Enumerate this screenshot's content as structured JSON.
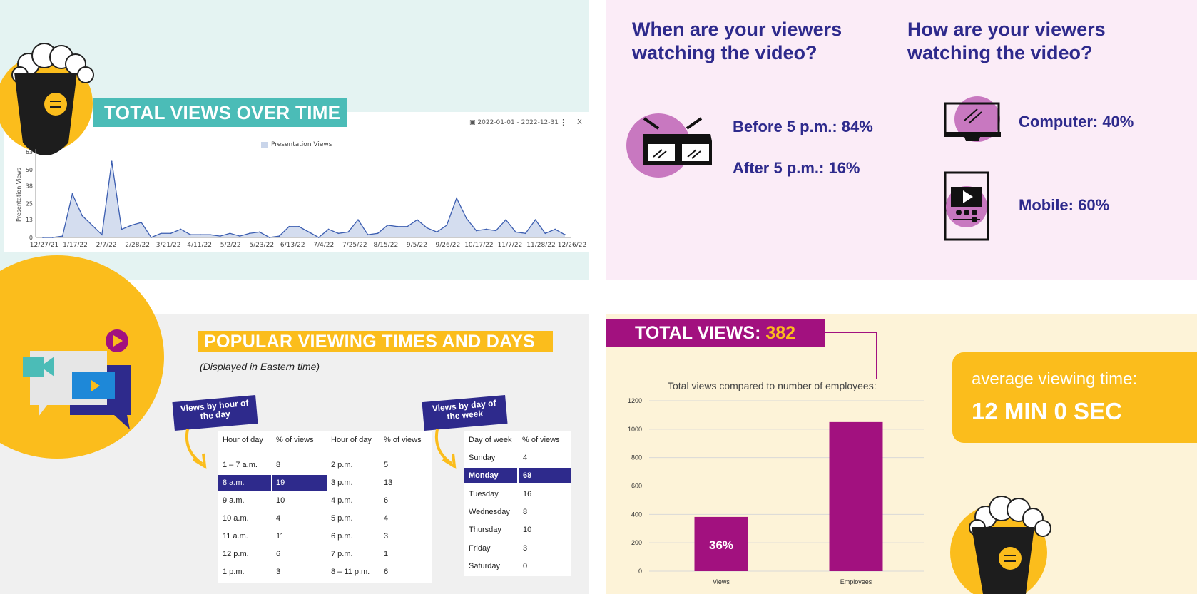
{
  "total_views_panel": {
    "banner": "TOTAL VIEWS OVER TIME",
    "date_range": "2022-01-01 - 2022-12-31",
    "menu_icon": "⋮",
    "close_label": "X"
  },
  "when_panel": {
    "title": "When are your viewers watching the video?",
    "before": "Before 5 p.m.: 84%",
    "after": "After 5 p.m.: 16%"
  },
  "how_panel": {
    "title": "How are your viewers watching the video?",
    "computer": "Computer: 40%",
    "mobile": "Mobile: 60%"
  },
  "popular_panel": {
    "banner": "POPULAR VIEWING TIMES AND DAYS",
    "note": "(Displayed in Eastern time)",
    "hour_tag": "Views by hour of the day",
    "day_tag": "Views by day of the week",
    "hour_headers": [
      "Hour of day",
      "% of views",
      "Hour of day",
      "% of views"
    ],
    "hour_rows_left": [
      [
        "1 – 7 a.m.",
        "8"
      ],
      [
        "8 a.m.",
        "19"
      ],
      [
        "9 a.m.",
        "10"
      ],
      [
        "10 a.m.",
        "4"
      ],
      [
        "11 a.m.",
        "11"
      ],
      [
        "12 p.m.",
        "6"
      ],
      [
        "1 p.m.",
        "3"
      ]
    ],
    "hour_rows_right": [
      [
        "2 p.m.",
        "5"
      ],
      [
        "3 p.m.",
        "13"
      ],
      [
        "4 p.m.",
        "6"
      ],
      [
        "5 p.m.",
        "4"
      ],
      [
        "6 p.m.",
        "3"
      ],
      [
        "7 p.m.",
        "1"
      ],
      [
        "8 – 11 p.m.",
        "6"
      ]
    ],
    "day_headers": [
      "Day of week",
      "% of views"
    ],
    "day_rows": [
      [
        "Sunday",
        "4"
      ],
      [
        "Monday",
        "68"
      ],
      [
        "Tuesday",
        "16"
      ],
      [
        "Wednesday",
        "8"
      ],
      [
        "Thursday",
        "10"
      ],
      [
        "Friday",
        "3"
      ],
      [
        "Saturday",
        "0"
      ]
    ]
  },
  "summary_panel": {
    "total_label": "TOTAL VIEWS:",
    "total_value": "382",
    "compare_caption": "Total views compared to number of employees:",
    "avg_label": "average viewing time:",
    "avg_value": "12 MIN 0 SEC"
  },
  "colors": {
    "teal": "#4bbcb7",
    "navy": "#2e2a8c",
    "yellow": "#fbbd1c",
    "magenta": "#a2117f",
    "lavender": "#c878c0"
  },
  "chart_data": [
    {
      "type": "area",
      "title": "",
      "legend": [
        "Presentation Views"
      ],
      "ylabel": "Presentation Views",
      "ylim": [
        0,
        63
      ],
      "yticks": [
        0,
        13,
        25,
        38,
        50,
        63
      ],
      "xticks": [
        "12/27/21",
        "1/17/22",
        "2/7/22",
        "2/28/22",
        "3/21/22",
        "4/11/22",
        "5/2/22",
        "5/23/22",
        "6/13/22",
        "7/4/22",
        "7/25/22",
        "8/15/22",
        "9/5/22",
        "9/26/22",
        "10/17/22",
        "11/7/22",
        "11/28/22",
        "12/26/22"
      ],
      "series": [
        {
          "name": "Presentation Views",
          "values": [
            0,
            0,
            1,
            32,
            16,
            9,
            2,
            56,
            6,
            9,
            11,
            0,
            3,
            3,
            6,
            2,
            2,
            2,
            1,
            3,
            1,
            3,
            4,
            0,
            1,
            8,
            8,
            4,
            0,
            6,
            3,
            4,
            13,
            2,
            3,
            9,
            8,
            8,
            13,
            7,
            4,
            9,
            29,
            14,
            5,
            6,
            5,
            13,
            4,
            3,
            13,
            3,
            6,
            2
          ]
        }
      ]
    },
    {
      "type": "bar",
      "title": "Total views compared to number of employees:",
      "categories": [
        "Views",
        "Employees"
      ],
      "values": [
        382,
        1050
      ],
      "data_labels": [
        "36%",
        ""
      ],
      "ylim": [
        0,
        1200
      ],
      "yticks": [
        0,
        200,
        400,
        600,
        800,
        1000,
        1200
      ]
    }
  ]
}
